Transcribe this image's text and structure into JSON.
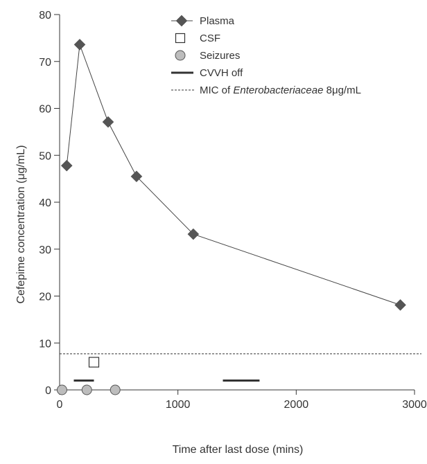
{
  "chart_data": {
    "type": "line",
    "title": "",
    "xlabel": "Time after last dose (mins)",
    "ylabel": "Cefepime concentration (μg/mL)",
    "xlim": [
      0,
      3000
    ],
    "ylim": [
      0,
      80
    ],
    "xticks": [
      0,
      1000,
      2000,
      3000
    ],
    "yticks": [
      0,
      10,
      20,
      30,
      40,
      50,
      60,
      70,
      80
    ],
    "grid": false,
    "legend_position": "top-right",
    "series": [
      {
        "name": "Plasma",
        "marker": "diamond",
        "color": "#555555",
        "x": [
          60,
          170,
          410,
          650,
          1130,
          2880
        ],
        "y": [
          47.8,
          73.6,
          57.1,
          45.5,
          33.2,
          18.1
        ]
      },
      {
        "name": "CSF",
        "marker": "open-square",
        "color": "#333333",
        "x": [
          290
        ],
        "y": [
          5.9
        ]
      },
      {
        "name": "Seizures",
        "marker": "grey-circle",
        "color": "#bdbdbd",
        "x": [
          20,
          230,
          470
        ],
        "y": [
          0,
          0,
          0
        ]
      }
    ],
    "cvvh_off": {
      "name": "CVVH off",
      "intervals": [
        [
          120,
          290
        ],
        [
          1380,
          1690
        ]
      ],
      "y": 2
    },
    "mic_line": {
      "name_prefix": "MIC of ",
      "name_italic": "Enterobacteriaceae",
      "name_suffix": " 8μg/mL",
      "y": 7.7
    }
  }
}
